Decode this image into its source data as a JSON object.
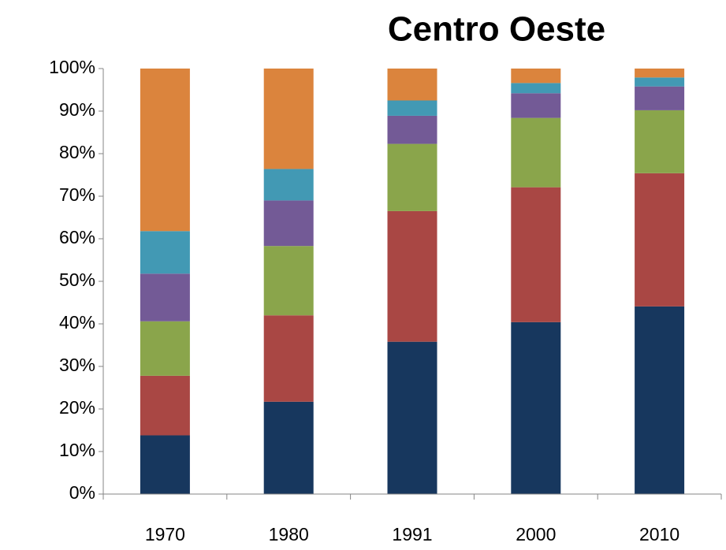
{
  "chart_data": {
    "type": "stacked_bar",
    "title": "Centro Oeste",
    "categories": [
      "1970",
      "1980",
      "1991",
      "2000",
      "2010"
    ],
    "series": [
      {
        "color": "#17375e",
        "values": [
          13.8,
          21.7,
          35.8,
          40.4,
          44.1
        ]
      },
      {
        "color": "#a94744",
        "values": [
          14,
          20.3,
          30.7,
          31.7,
          31.3
        ]
      },
      {
        "color": "#8aa54b",
        "values": [
          12.8,
          16.3,
          15.8,
          16.3,
          14.8
        ]
      },
      {
        "color": "#735a96",
        "values": [
          11.2,
          10.7,
          6.6,
          5.8,
          5.6
        ]
      },
      {
        "color": "#4299b4",
        "values": [
          10,
          7.4,
          3.6,
          2.4,
          2.1
        ]
      },
      {
        "color": "#db843d",
        "values": [
          38.2,
          23.6,
          7.5,
          3.4,
          2.1
        ]
      }
    ],
    "ylim": [
      0,
      100
    ],
    "yticks": [
      {
        "value": 0,
        "label": "0%"
      },
      {
        "value": 10,
        "label": "10%"
      },
      {
        "value": 20,
        "label": "20%"
      },
      {
        "value": 30,
        "label": "30%"
      },
      {
        "value": 40,
        "label": "40%"
      },
      {
        "value": 50,
        "label": "50%"
      },
      {
        "value": 60,
        "label": "60%"
      },
      {
        "value": 70,
        "label": "70%"
      },
      {
        "value": 80,
        "label": "80%"
      },
      {
        "value": 90,
        "label": "90%"
      },
      {
        "value": 100,
        "label": "100%"
      }
    ],
    "grid": false
  }
}
